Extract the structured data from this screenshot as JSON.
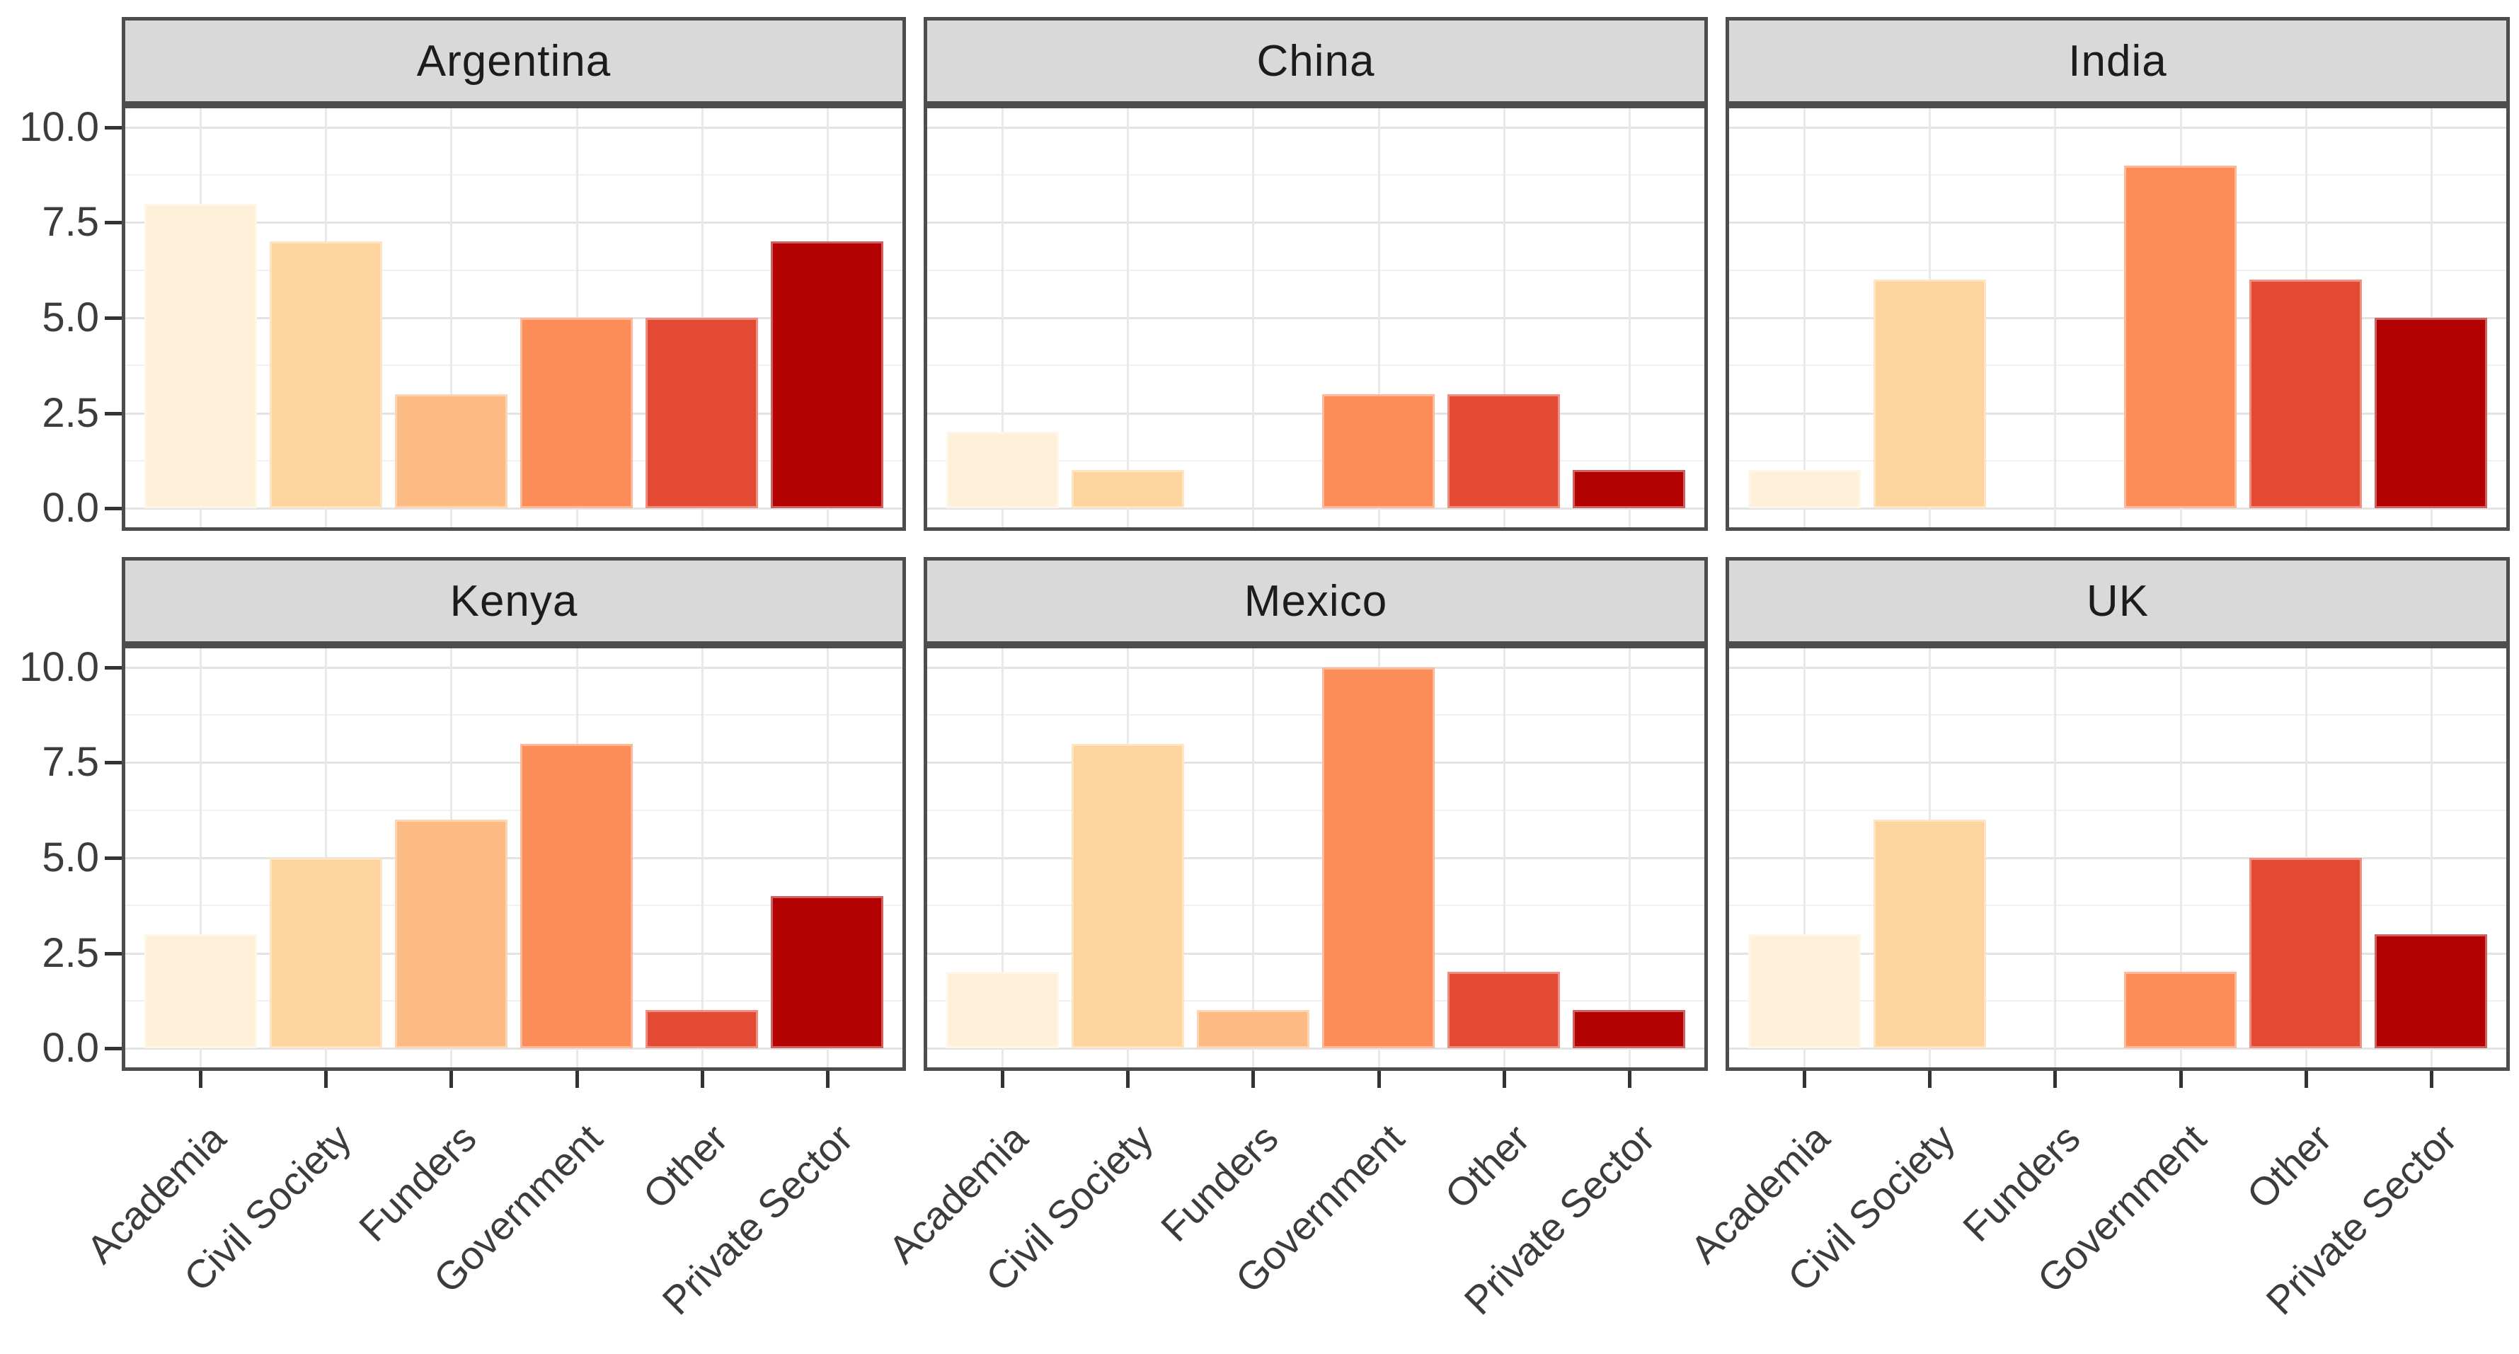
{
  "chart_data": {
    "type": "bar",
    "title": "",
    "layout": "facet_grid_2x3",
    "legend": "none",
    "grid": "major+minor horizontal, major vertical at categories",
    "categories": [
      "Academia",
      "Civil Society",
      "Funders",
      "Government",
      "Other",
      "Private Sector"
    ],
    "category_colors": [
      "#FEF0D9",
      "#FDD49E",
      "#FDBB84",
      "#FC8D59",
      "#E34A33",
      "#B30000"
    ],
    "y_axis": {
      "ticks_top_to_bottom": [
        "10.0",
        "7.5",
        "5.0",
        "2.5",
        "0.0"
      ],
      "tick_values": [
        10,
        7.5,
        5,
        2.5,
        0
      ],
      "ylim": [
        0,
        10
      ]
    },
    "facets": [
      {
        "title": "Argentina",
        "values": [
          8,
          7,
          3,
          5,
          5,
          7
        ]
      },
      {
        "title": "China",
        "values": [
          2,
          1,
          0,
          3,
          3,
          1
        ]
      },
      {
        "title": "India",
        "values": [
          1,
          6,
          0,
          9,
          6,
          5
        ]
      },
      {
        "title": "Kenya",
        "values": [
          3,
          5,
          6,
          8,
          1,
          4
        ]
      },
      {
        "title": "Mexico",
        "values": [
          2,
          8,
          1,
          10,
          2,
          1
        ]
      },
      {
        "title": "UK",
        "values": [
          3,
          6,
          0,
          2,
          5,
          3
        ]
      }
    ],
    "styles": {
      "strip_background": "#D9D9D9",
      "panel_border": "#4D4D4D",
      "grid_major": "#E3E3E3",
      "grid_minor": "#F1F1F1",
      "axis_text": "#3C3C3C"
    }
  }
}
